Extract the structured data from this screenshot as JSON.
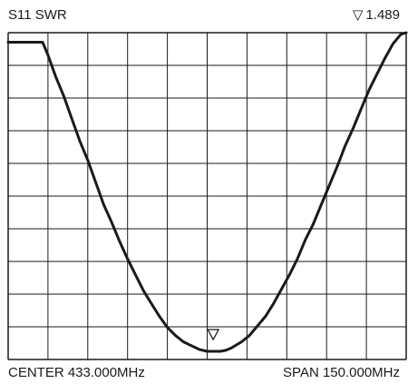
{
  "header": {
    "trace_label": "S11 SWR",
    "marker_symbol": "▽",
    "marker_value": "1.489"
  },
  "footer": {
    "center_label": "CENTER 433.000MHz",
    "span_label": "SPAN 150.000MHz"
  },
  "chart_data": {
    "type": "line",
    "title": "S11 SWR",
    "center_mhz": 433.0,
    "span_mhz": 150.0,
    "x_divisions": 10,
    "y_divisions": 10,
    "xlim": [
      358.0,
      508.0
    ],
    "ylim": [
      0,
      10
    ],
    "grid": true,
    "line_color": "#1a1a1a",
    "grid_color": "#1a1a1a",
    "marker": {
      "x_mhz": 438.0,
      "value": 1.489,
      "symbol": "triangle-down"
    },
    "series": [
      {
        "x": [
          358.0,
          369.0,
          371.0,
          373.0,
          376.0,
          379.0,
          382.0,
          385.0,
          388.0,
          391.0,
          394.0,
          397.0,
          400.0,
          403.0,
          406.0,
          409.0,
          412.0,
          415.0,
          418.0,
          421.0,
          424.0,
          427.0,
          430.0,
          433.0,
          436.0,
          438.0,
          440.0,
          442.0,
          444.0,
          446.0,
          449.0,
          452.0,
          455.0,
          458.0,
          461.0,
          464.0,
          467.0,
          470.0,
          473.0,
          476.0,
          479.0,
          482.0,
          485.0,
          488.0,
          491.0,
          494.0,
          497.0,
          500.0,
          503.0,
          506.0,
          508.0
        ],
        "y": [
          9.7,
          9.7,
          9.7,
          9.3,
          8.6,
          8.0,
          7.3,
          6.6,
          6.0,
          5.3,
          4.6,
          4.05,
          3.45,
          2.9,
          2.4,
          1.9,
          1.5,
          1.1,
          0.75,
          0.5,
          0.3,
          0.18,
          0.06,
          0.0,
          0.0,
          0.0,
          0.03,
          0.1,
          0.2,
          0.3,
          0.5,
          0.8,
          1.1,
          1.5,
          1.95,
          2.4,
          2.9,
          3.5,
          4.0,
          4.6,
          5.2,
          5.8,
          6.45,
          7.0,
          7.6,
          8.2,
          8.7,
          9.2,
          9.65,
          9.95,
          10.1
        ]
      }
    ]
  }
}
